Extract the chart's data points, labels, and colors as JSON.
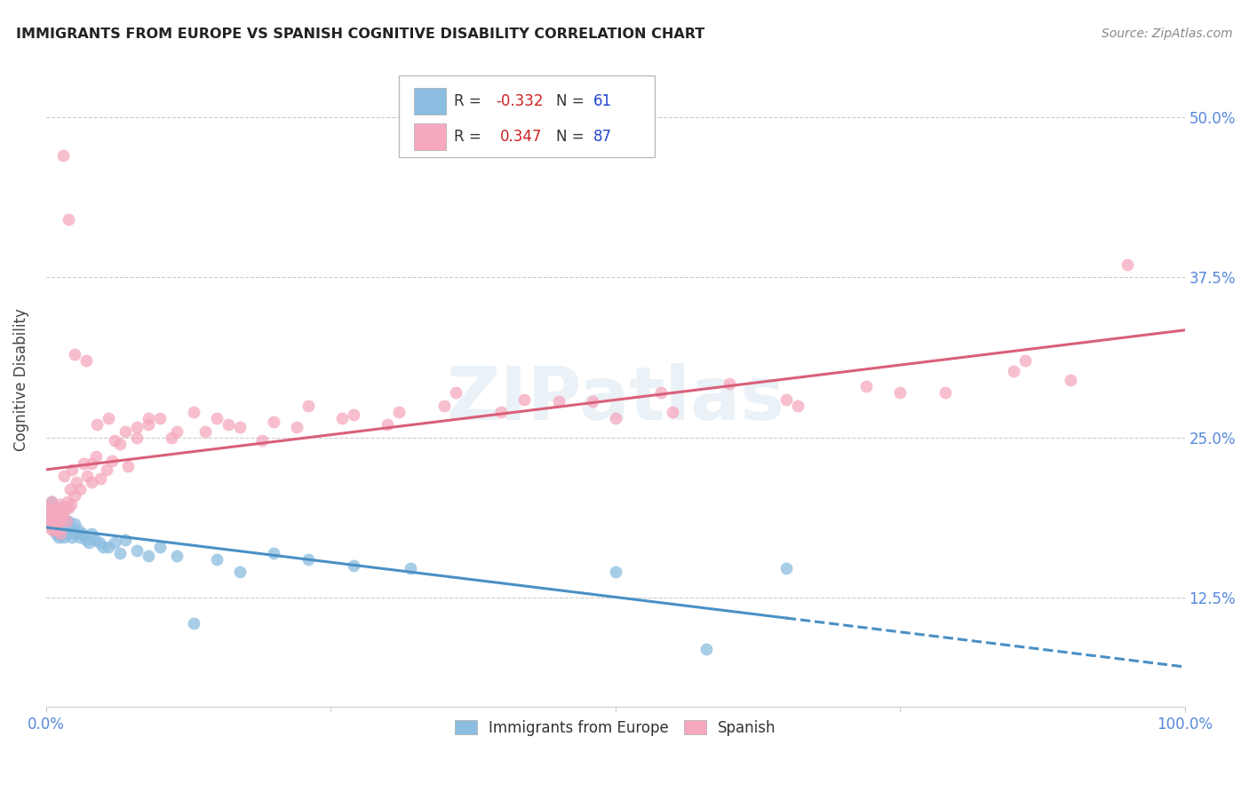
{
  "title": "IMMIGRANTS FROM EUROPE VS SPANISH COGNITIVE DISABILITY CORRELATION CHART",
  "source": "Source: ZipAtlas.com",
  "ylabel": "Cognitive Disability",
  "ytick_labels": [
    "12.5%",
    "25.0%",
    "37.5%",
    "50.0%"
  ],
  "ytick_values": [
    0.125,
    0.25,
    0.375,
    0.5
  ],
  "xlim": [
    0.0,
    1.0
  ],
  "ylim": [
    0.04,
    0.55
  ],
  "legend_blue_r": "-0.332",
  "legend_blue_n": "61",
  "legend_pink_r": "0.347",
  "legend_pink_n": "87",
  "blue_color": "#8bbde0",
  "pink_color": "#f5a8be",
  "blue_line_color": "#4a90c4",
  "pink_line_color": "#d9607a",
  "watermark_text": "ZIPatlas",
  "blue_scatter_x": [
    0.002,
    0.003,
    0.004,
    0.005,
    0.005,
    0.006,
    0.007,
    0.007,
    0.008,
    0.008,
    0.009,
    0.009,
    0.01,
    0.01,
    0.011,
    0.011,
    0.012,
    0.012,
    0.013,
    0.013,
    0.014,
    0.015,
    0.015,
    0.016,
    0.016,
    0.017,
    0.018,
    0.019,
    0.02,
    0.021,
    0.022,
    0.023,
    0.025,
    0.026,
    0.028,
    0.03,
    0.032,
    0.035,
    0.038,
    0.04,
    0.043,
    0.047,
    0.05,
    0.055,
    0.06,
    0.065,
    0.07,
    0.08,
    0.09,
    0.1,
    0.115,
    0.13,
    0.15,
    0.17,
    0.2,
    0.23,
    0.27,
    0.32,
    0.5,
    0.58,
    0.65
  ],
  "blue_scatter_y": [
    0.195,
    0.19,
    0.185,
    0.2,
    0.188,
    0.182,
    0.192,
    0.178,
    0.196,
    0.183,
    0.175,
    0.188,
    0.192,
    0.178,
    0.185,
    0.172,
    0.19,
    0.176,
    0.188,
    0.174,
    0.182,
    0.195,
    0.178,
    0.187,
    0.172,
    0.185,
    0.18,
    0.175,
    0.185,
    0.178,
    0.18,
    0.172,
    0.183,
    0.175,
    0.178,
    0.172,
    0.175,
    0.17,
    0.168,
    0.175,
    0.17,
    0.168,
    0.165,
    0.165,
    0.168,
    0.16,
    0.17,
    0.162,
    0.158,
    0.165,
    0.158,
    0.105,
    0.155,
    0.145,
    0.16,
    0.155,
    0.15,
    0.148,
    0.145,
    0.085,
    0.148
  ],
  "pink_scatter_x": [
    0.001,
    0.002,
    0.003,
    0.004,
    0.005,
    0.005,
    0.006,
    0.007,
    0.008,
    0.008,
    0.009,
    0.01,
    0.01,
    0.011,
    0.012,
    0.013,
    0.013,
    0.014,
    0.015,
    0.016,
    0.017,
    0.018,
    0.019,
    0.02,
    0.021,
    0.022,
    0.023,
    0.025,
    0.027,
    0.03,
    0.033,
    0.036,
    0.04,
    0.044,
    0.048,
    0.053,
    0.058,
    0.065,
    0.072,
    0.08,
    0.09,
    0.1,
    0.115,
    0.13,
    0.15,
    0.17,
    0.2,
    0.23,
    0.27,
    0.31,
    0.36,
    0.42,
    0.48,
    0.54,
    0.6,
    0.66,
    0.72,
    0.79,
    0.85,
    0.9,
    0.04,
    0.06,
    0.08,
    0.02,
    0.035,
    0.015,
    0.025,
    0.045,
    0.055,
    0.07,
    0.09,
    0.11,
    0.14,
    0.16,
    0.19,
    0.22,
    0.26,
    0.3,
    0.35,
    0.4,
    0.45,
    0.5,
    0.55,
    0.65,
    0.75,
    0.86,
    0.95
  ],
  "pink_scatter_y": [
    0.188,
    0.195,
    0.18,
    0.192,
    0.185,
    0.2,
    0.178,
    0.195,
    0.19,
    0.182,
    0.188,
    0.195,
    0.178,
    0.192,
    0.185,
    0.198,
    0.175,
    0.192,
    0.188,
    0.22,
    0.195,
    0.185,
    0.2,
    0.195,
    0.21,
    0.198,
    0.225,
    0.205,
    0.215,
    0.21,
    0.23,
    0.22,
    0.215,
    0.235,
    0.218,
    0.225,
    0.232,
    0.245,
    0.228,
    0.25,
    0.26,
    0.265,
    0.255,
    0.27,
    0.265,
    0.258,
    0.262,
    0.275,
    0.268,
    0.27,
    0.285,
    0.28,
    0.278,
    0.285,
    0.292,
    0.275,
    0.29,
    0.285,
    0.302,
    0.295,
    0.23,
    0.248,
    0.258,
    0.42,
    0.31,
    0.47,
    0.315,
    0.26,
    0.265,
    0.255,
    0.265,
    0.25,
    0.255,
    0.26,
    0.248,
    0.258,
    0.265,
    0.26,
    0.275,
    0.27,
    0.278,
    0.265,
    0.27,
    0.28,
    0.285,
    0.31,
    0.385
  ]
}
